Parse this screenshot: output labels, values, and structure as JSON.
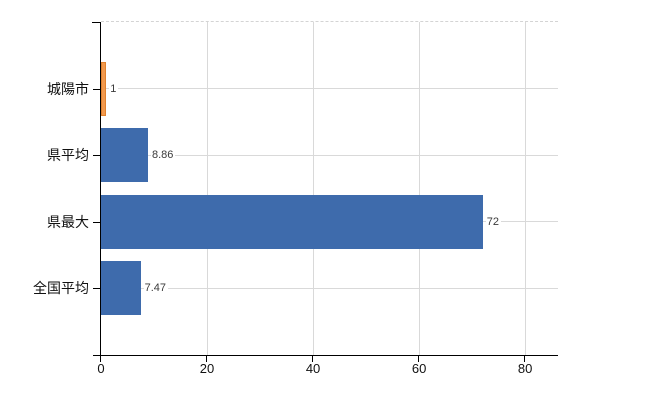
{
  "chart_data": {
    "type": "bar",
    "orientation": "horizontal",
    "title": "",
    "categories": [
      "城陽市",
      "県平均",
      "県最大",
      "全国平均"
    ],
    "values": [
      1,
      8.86,
      72,
      7.47
    ],
    "value_labels": [
      "1",
      "8.86",
      "72",
      "7.47"
    ],
    "series": [
      {
        "name": "",
        "values": [
          1,
          8.86,
          72,
          7.47
        ]
      }
    ],
    "bar_fill_colors": [
      "#f2994d",
      "#3e6bac",
      "#3e6bac",
      "#3e6bac"
    ],
    "bar_border_colors": [
      "#e0812d",
      "#3e6bac",
      "#3e6bac",
      "#3e6bac"
    ],
    "highlight_category": "城陽市",
    "x_ticks": [
      0,
      20,
      40,
      60,
      80
    ],
    "x_tick_labels": [
      "0",
      "20",
      "40",
      "60",
      "80"
    ],
    "xlim": [
      0,
      86.2
    ],
    "ylabel": "",
    "xlabel": "",
    "grid": true,
    "grid_color": "#d9d9d9",
    "axis_color": "#000000",
    "background_color": "#ffffff",
    "legend_position": "none"
  }
}
